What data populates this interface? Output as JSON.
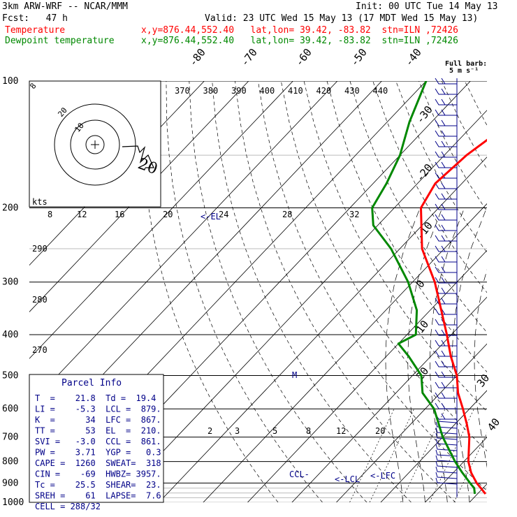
{
  "header": {
    "model": "3km ARW-WRF -- NCAR/MMM",
    "init": "Init: 00 UTC Tue 14 May 13",
    "fcst": "Fcst:   47 h",
    "valid": "Valid: 23 UTC Wed 15 May 13 (17 MDT Wed 15 May 13)",
    "temp_label": "Temperature",
    "temp_info": "x,y=876.44,552.40   lat,lon= 39.42, -83.82  stn=ILN ,72426",
    "dew_label": "Dewpoint temperature",
    "dew_info": "x,y=876.44,552.40   lat,lon= 39.42, -83.82  stn=ILN ,72426"
  },
  "colors": {
    "temperature": "#ff0000",
    "dewpoint": "#008800",
    "annotation": "#000088",
    "text": "#000000"
  },
  "chart_data": {
    "type": "line",
    "subtype": "skew-T log-P sounding",
    "pressure_axis": {
      "ticks": [
        100,
        200,
        300,
        400,
        500,
        600,
        700,
        800,
        900,
        1000
      ],
      "range": [
        100,
        1000
      ],
      "scale": "log",
      "inverted": true
    },
    "isotherm_labels": [
      "-80",
      "-70",
      "-60",
      "-50",
      "-40",
      "-30",
      "-20",
      "-10",
      "0",
      "10",
      "20",
      "30",
      "40"
    ],
    "theta_labels": [
      "370",
      "380",
      "390",
      "400",
      "410",
      "420",
      "430",
      "440"
    ],
    "theta_side_labels": [
      "290",
      "280",
      "270"
    ],
    "mixing_ratio_labels": [
      "2",
      "3",
      "5",
      "8",
      "12",
      "20"
    ],
    "hodograph_speed_labels": [
      "8",
      "12",
      "16",
      "20",
      "24",
      "28",
      "32"
    ],
    "hodograph_units": "kts",
    "hodograph_ring_labels": [
      "8",
      "20",
      "10"
    ],
    "hodograph_annotation": "20",
    "levels_annotation": {
      "el": "<-EL",
      "m": "M",
      "ccl": "CCL-",
      "lcl": "<-LCL",
      "lfc": "<-LFC"
    },
    "wind_legend": {
      "line1": "Full barb:",
      "line2": "5 m s⁻¹"
    },
    "series": [
      {
        "name": "Temperature",
        "points": [
          [
            955,
            21.8
          ],
          [
            925,
            19.5
          ],
          [
            900,
            17.5
          ],
          [
            850,
            14.0
          ],
          [
            800,
            11.0
          ],
          [
            700,
            6.0
          ],
          [
            650,
            2.5
          ],
          [
            600,
            -1.5
          ],
          [
            550,
            -6.0
          ],
          [
            500,
            -10.0
          ],
          [
            450,
            -15.5
          ],
          [
            400,
            -21.0
          ],
          [
            350,
            -27.5
          ],
          [
            300,
            -35.0
          ],
          [
            250,
            -45.0
          ],
          [
            200,
            -54.0
          ],
          [
            175,
            -56.0
          ],
          [
            150,
            -55.0
          ],
          [
            125,
            -52.0
          ],
          [
            100,
            -50.0
          ]
        ]
      },
      {
        "name": "Dewpoint temperature",
        "points": [
          [
            955,
            19.4
          ],
          [
            925,
            18.0
          ],
          [
            900,
            16.0
          ],
          [
            850,
            12.0
          ],
          [
            800,
            8.0
          ],
          [
            700,
            0.0
          ],
          [
            600,
            -8.0
          ],
          [
            550,
            -14.0
          ],
          [
            500,
            -18.0
          ],
          [
            450,
            -25.0
          ],
          [
            420,
            -30.0
          ],
          [
            400,
            -28.0
          ],
          [
            350,
            -33.0
          ],
          [
            300,
            -41.0
          ],
          [
            250,
            -52.0
          ],
          [
            220,
            -61.0
          ],
          [
            200,
            -65.0
          ],
          [
            175,
            -67.0
          ],
          [
            150,
            -70.0
          ],
          [
            125,
            -75.0
          ],
          [
            100,
            -80.0
          ]
        ]
      }
    ]
  },
  "parcel_info": {
    "title": "Parcel Info",
    "rows": [
      "T  =    21.8  Td =  19.4",
      "LI =    -5.3  LCL =  879.",
      "K  =      34  LFC =  867.",
      "TT =      53  EL  =  210.",
      "SVI =   -3.0  CCL =  861.",
      "PW =    3.71  YGP =   0.3",
      "CAPE =  1260  SWEAT=  318",
      "CIN =    -69  HWBZ= 3957.",
      "Tc =    25.5  SHEAR=  23.",
      "SREH =    61  LAPSE=  7.6",
      "CELL = 288/32"
    ]
  }
}
